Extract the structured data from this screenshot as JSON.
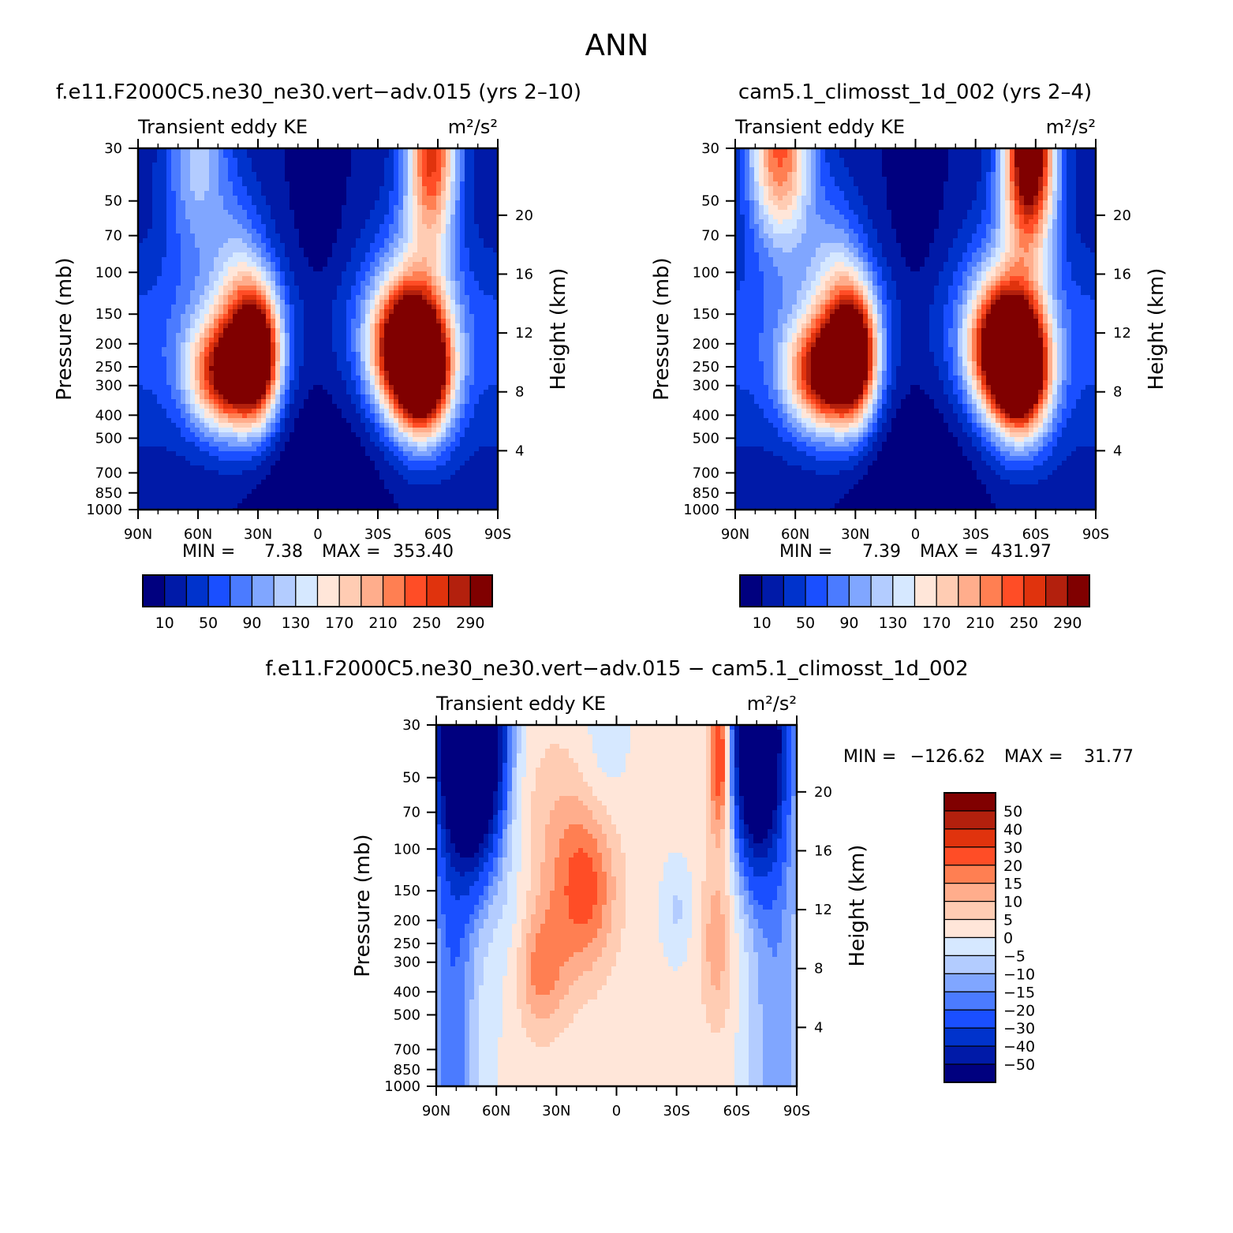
{
  "figure": {
    "title": "ANN"
  },
  "chart_data": [
    {
      "type": "heatmap",
      "title": "f.e11.F2000C5.ne30_ne30.vert−adv.015 (yrs 2–10)",
      "subtitle_left": "Transient eddy KE",
      "units": "m²/s²",
      "ylabel": "Pressure (mb)",
      "ylabel_right": "Height (km)",
      "x_ticks": [
        "90N",
        "60N",
        "30N",
        "0",
        "30S",
        "60S",
        "90S"
      ],
      "y_ticks": [
        "30",
        "50",
        "70",
        "100",
        "150",
        "200",
        "250",
        "300",
        "400",
        "500",
        "700",
        "850",
        "1000"
      ],
      "y_ticks_right": [
        "20",
        "16",
        "12",
        "8",
        "4"
      ],
      "stats": {
        "min_label": "MIN =",
        "min": "7.38",
        "max_label": "MAX =",
        "max": "353.40"
      },
      "colorbar_levels": [
        "10",
        "50",
        "90",
        "130",
        "170",
        "210",
        "250",
        "290"
      ],
      "features": [
        {
          "lat": 58,
          "p": 35,
          "value": 180
        },
        {
          "lat": 47,
          "p": 260,
          "value": 275
        },
        {
          "lat": 28,
          "p": 210,
          "value": 320
        },
        {
          "lat": -45,
          "p": 210,
          "value": 260
        },
        {
          "lat": -52,
          "p": 270,
          "value": 340
        },
        {
          "lat": -56,
          "p": 32,
          "value": 330
        }
      ]
    },
    {
      "type": "heatmap",
      "title": "cam5.1_climosst_1d_002 (yrs 2–4)",
      "subtitle_left": "Transient eddy KE",
      "units": "m²/s²",
      "ylabel": "Pressure (mb)",
      "ylabel_right": "Height (km)",
      "x_ticks": [
        "90N",
        "60N",
        "30N",
        "0",
        "30S",
        "60S",
        "90S"
      ],
      "y_ticks": [
        "30",
        "50",
        "70",
        "100",
        "150",
        "200",
        "250",
        "300",
        "400",
        "500",
        "700",
        "850",
        "1000"
      ],
      "y_ticks_right": [
        "20",
        "16",
        "12",
        "8",
        "4"
      ],
      "stats": {
        "min_label": "MIN =",
        "min": "7.39",
        "max_label": "MAX =",
        "max": "431.97"
      },
      "colorbar_levels": [
        "10",
        "50",
        "90",
        "130",
        "170",
        "210",
        "250",
        "290"
      ],
      "features": [
        {
          "lat": 68,
          "p": 35,
          "value": 290
        },
        {
          "lat": 47,
          "p": 260,
          "value": 275
        },
        {
          "lat": 28,
          "p": 210,
          "value": 320
        },
        {
          "lat": -45,
          "p": 210,
          "value": 265
        },
        {
          "lat": -52,
          "p": 270,
          "value": 350
        },
        {
          "lat": -58,
          "p": 32,
          "value": 420
        }
      ]
    },
    {
      "type": "heatmap",
      "title": "f.e11.F2000C5.ne30_ne30.vert−adv.015 − cam5.1_climosst_1d_002",
      "subtitle_left": "Transient eddy KE",
      "units": "m²/s²",
      "ylabel": "Pressure (mb)",
      "ylabel_right": "Height (km)",
      "x_ticks": [
        "90N",
        "60N",
        "30N",
        "0",
        "30S",
        "60S",
        "90S"
      ],
      "y_ticks": [
        "30",
        "50",
        "70",
        "100",
        "150",
        "200",
        "250",
        "300",
        "400",
        "500",
        "700",
        "850",
        "1000"
      ],
      "y_ticks_right": [
        "20",
        "16",
        "12",
        "8",
        "4"
      ],
      "stats": {
        "min_label": "MIN =",
        "min": "−126.62",
        "max_label": "MAX =",
        "max": "31.77"
      },
      "colorbar_levels": [
        "50",
        "40",
        "30",
        "20",
        "15",
        "10",
        "5",
        "0",
        "−5",
        "−10",
        "−15",
        "−20",
        "−30",
        "−40",
        "−50"
      ],
      "features": [
        {
          "lat": 70,
          "p": 40,
          "value": -126
        },
        {
          "lat": 40,
          "p": 340,
          "value": 18
        },
        {
          "lat": 12,
          "p": 160,
          "value": 16
        },
        {
          "lat": -52,
          "p": 40,
          "value": 30
        },
        {
          "lat": -68,
          "p": 40,
          "value": -100
        }
      ]
    }
  ],
  "colors": {
    "kinetic_energy_scale": [
      "#00007f",
      "#001aa8",
      "#0033cc",
      "#1a4fff",
      "#4b7bff",
      "#80a6ff",
      "#b3ccff",
      "#d6e8ff",
      "#ffe6d9",
      "#ffccb3",
      "#ffad8c",
      "#ff7f52",
      "#ff4d26",
      "#e0330d",
      "#b3200d",
      "#800000"
    ],
    "difference_scale": [
      "#800000",
      "#b3200d",
      "#e0330d",
      "#ff4d26",
      "#ff7f52",
      "#ffad8c",
      "#ffccb3",
      "#ffe6d9",
      "#d6e8ff",
      "#b3ccff",
      "#80a6ff",
      "#4b7bff",
      "#1a4fff",
      "#0033cc",
      "#001aa8",
      "#00007f"
    ]
  }
}
